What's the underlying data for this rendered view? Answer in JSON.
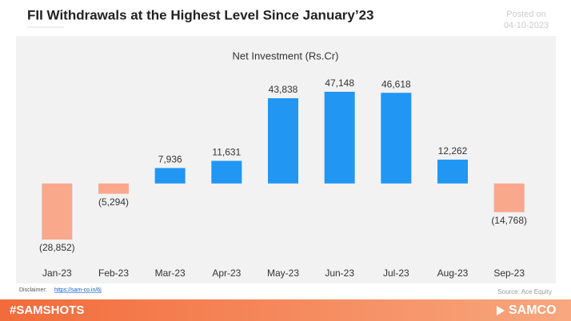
{
  "header": {
    "title": "FII Withdrawals at the Highest Level Since January’23",
    "posted_label": "Posted on",
    "posted_date": "04-10-2023"
  },
  "chart_data": {
    "type": "bar",
    "title": "Net Investment (Rs.Cr)",
    "categories": [
      "Jan-23",
      "Feb-23",
      "Mar-23",
      "Apr-23",
      "May-23",
      "Jun-23",
      "Jul-23",
      "Aug-23",
      "Sep-23"
    ],
    "values": [
      -28852,
      -5294,
      7936,
      11631,
      43838,
      47148,
      46618,
      12262,
      -14768
    ],
    "value_labels": [
      "(28,852)",
      "(5,294)",
      "7,936",
      "11,631",
      "43,838",
      "47,148",
      "46,618",
      "12,262",
      "(14,768)"
    ],
    "positive_color": "#2196f3",
    "negative_color": "#f9a88c",
    "ylim": [
      -35000,
      50000
    ]
  },
  "footer": {
    "disclaimer_label": "Disclaimer:",
    "disclaimer_link": "https://sam-co.in/6j",
    "source": "Source:  Ace Equity",
    "hashtag": "#SAMSHOTS",
    "brand": "SAMCO"
  }
}
